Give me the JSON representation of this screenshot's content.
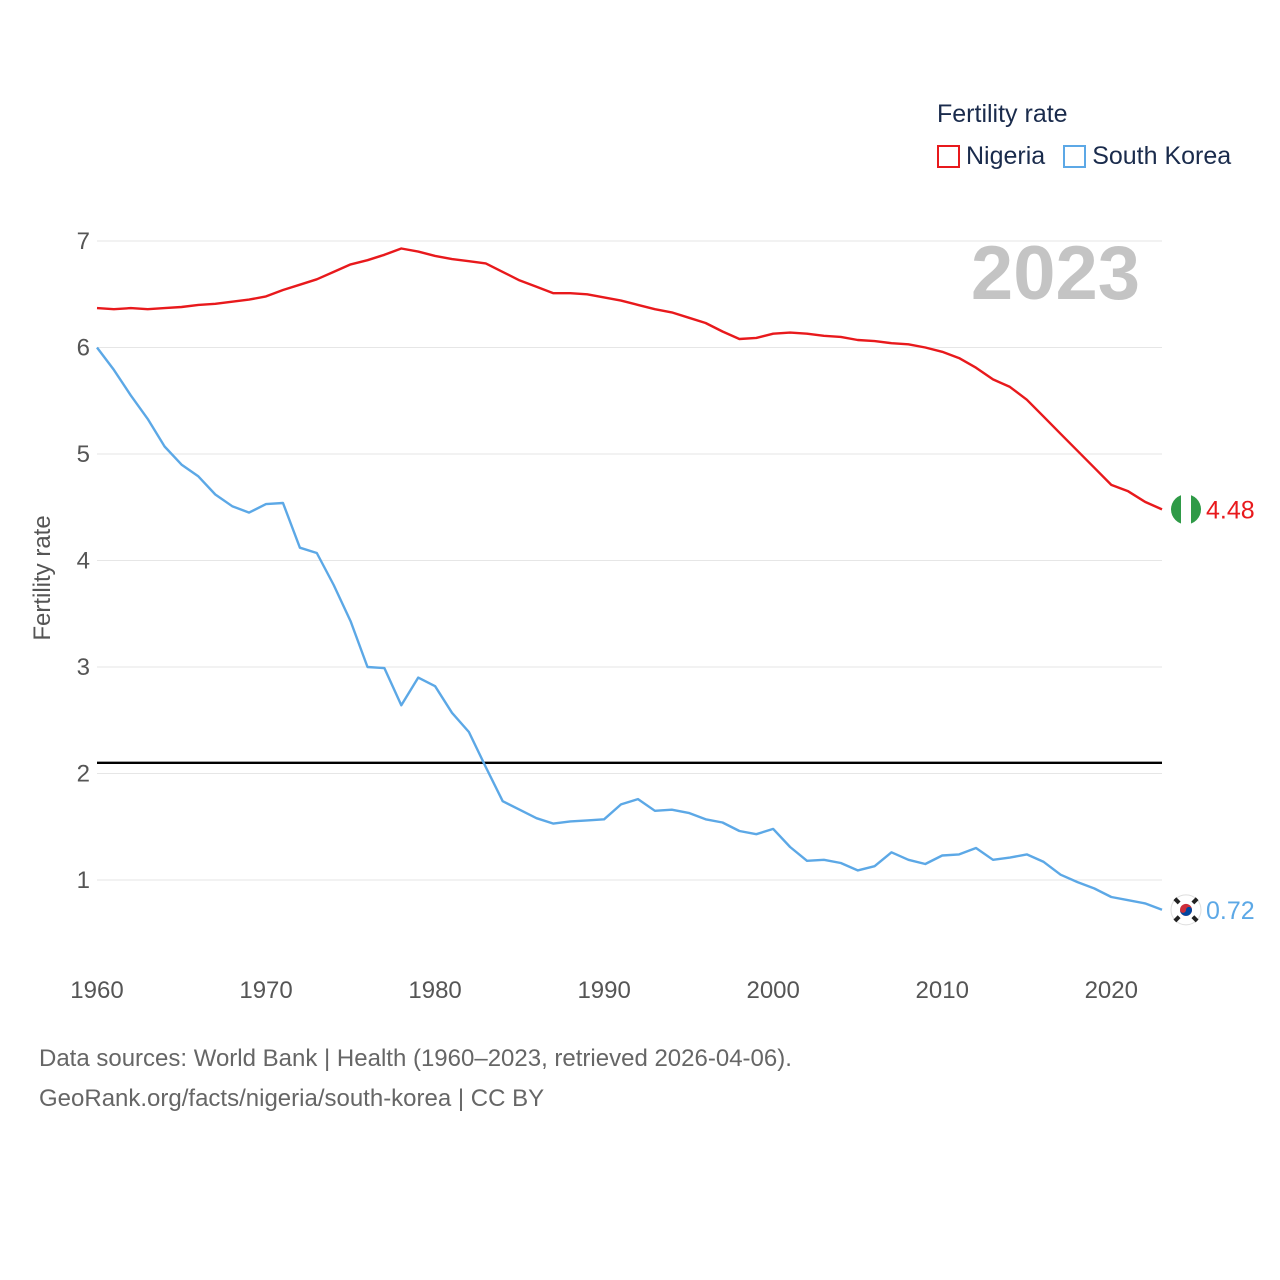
{
  "legend": {
    "title": "Fertility rate",
    "nigeria_label": "Nigeria",
    "korea_label": "South Korea"
  },
  "year_watermark": "2023",
  "footer": {
    "line1": "Data sources: World Bank | Health (1960–2023, retrieved 2026-04-06).",
    "line2": "GeoRank.org/facts/nigeria/south-korea | CC BY"
  },
  "colors": {
    "nigeria": "#e8191c",
    "korea": "#5ca8e6",
    "gridline": "#e6e6e6",
    "reference_line": "#000000",
    "axis_text": "#555555",
    "watermark": "#c4c4c4"
  },
  "chart_data": {
    "type": "line",
    "title": "",
    "xlabel": "",
    "ylabel": "Fertility rate",
    "xlim": [
      1960,
      2023
    ],
    "ylim": [
      0.3,
      7.0
    ],
    "x_ticks": [
      1960,
      1970,
      1980,
      1990,
      2000,
      2010,
      2020
    ],
    "y_ticks": [
      1,
      2,
      3,
      4,
      5,
      6,
      7
    ],
    "grid": true,
    "legend_position": "top-right",
    "reference_line": 2.1,
    "x": [
      1960,
      1961,
      1962,
      1963,
      1964,
      1965,
      1966,
      1967,
      1968,
      1969,
      1970,
      1971,
      1972,
      1973,
      1974,
      1975,
      1976,
      1977,
      1978,
      1979,
      1980,
      1981,
      1982,
      1983,
      1984,
      1985,
      1986,
      1987,
      1988,
      1989,
      1990,
      1991,
      1992,
      1993,
      1994,
      1995,
      1996,
      1997,
      1998,
      1999,
      2000,
      2001,
      2002,
      2003,
      2004,
      2005,
      2006,
      2007,
      2008,
      2009,
      2010,
      2011,
      2012,
      2013,
      2014,
      2015,
      2016,
      2017,
      2018,
      2019,
      2020,
      2021,
      2022,
      2023
    ],
    "series": [
      {
        "name": "Nigeria",
        "end_label": "4.48",
        "values": [
          6.37,
          6.36,
          6.37,
          6.36,
          6.37,
          6.38,
          6.4,
          6.41,
          6.43,
          6.45,
          6.48,
          6.54,
          6.59,
          6.64,
          6.71,
          6.78,
          6.82,
          6.87,
          6.93,
          6.9,
          6.86,
          6.83,
          6.81,
          6.79,
          6.71,
          6.63,
          6.57,
          6.51,
          6.51,
          6.5,
          6.47,
          6.44,
          6.4,
          6.36,
          6.33,
          6.28,
          6.23,
          6.15,
          6.08,
          6.09,
          6.13,
          6.14,
          6.13,
          6.11,
          6.1,
          6.07,
          6.06,
          6.04,
          6.03,
          6.0,
          5.96,
          5.9,
          5.81,
          5.7,
          5.63,
          5.51,
          5.35,
          5.19,
          5.03,
          4.87,
          4.71,
          4.65,
          4.55,
          4.48
        ]
      },
      {
        "name": "South Korea",
        "end_label": "0.72",
        "values": [
          6.0,
          5.79,
          5.55,
          5.33,
          5.07,
          4.9,
          4.79,
          4.62,
          4.51,
          4.45,
          4.53,
          4.54,
          4.12,
          4.07,
          3.77,
          3.43,
          3.0,
          2.99,
          2.64,
          2.9,
          2.82,
          2.57,
          2.39,
          2.06,
          1.74,
          1.66,
          1.58,
          1.53,
          1.55,
          1.56,
          1.57,
          1.71,
          1.76,
          1.65,
          1.66,
          1.63,
          1.57,
          1.54,
          1.46,
          1.43,
          1.48,
          1.31,
          1.18,
          1.19,
          1.16,
          1.09,
          1.13,
          1.26,
          1.19,
          1.15,
          1.23,
          1.24,
          1.3,
          1.19,
          1.21,
          1.24,
          1.17,
          1.05,
          0.98,
          0.92,
          0.84,
          0.81,
          0.78,
          0.72
        ]
      }
    ]
  }
}
